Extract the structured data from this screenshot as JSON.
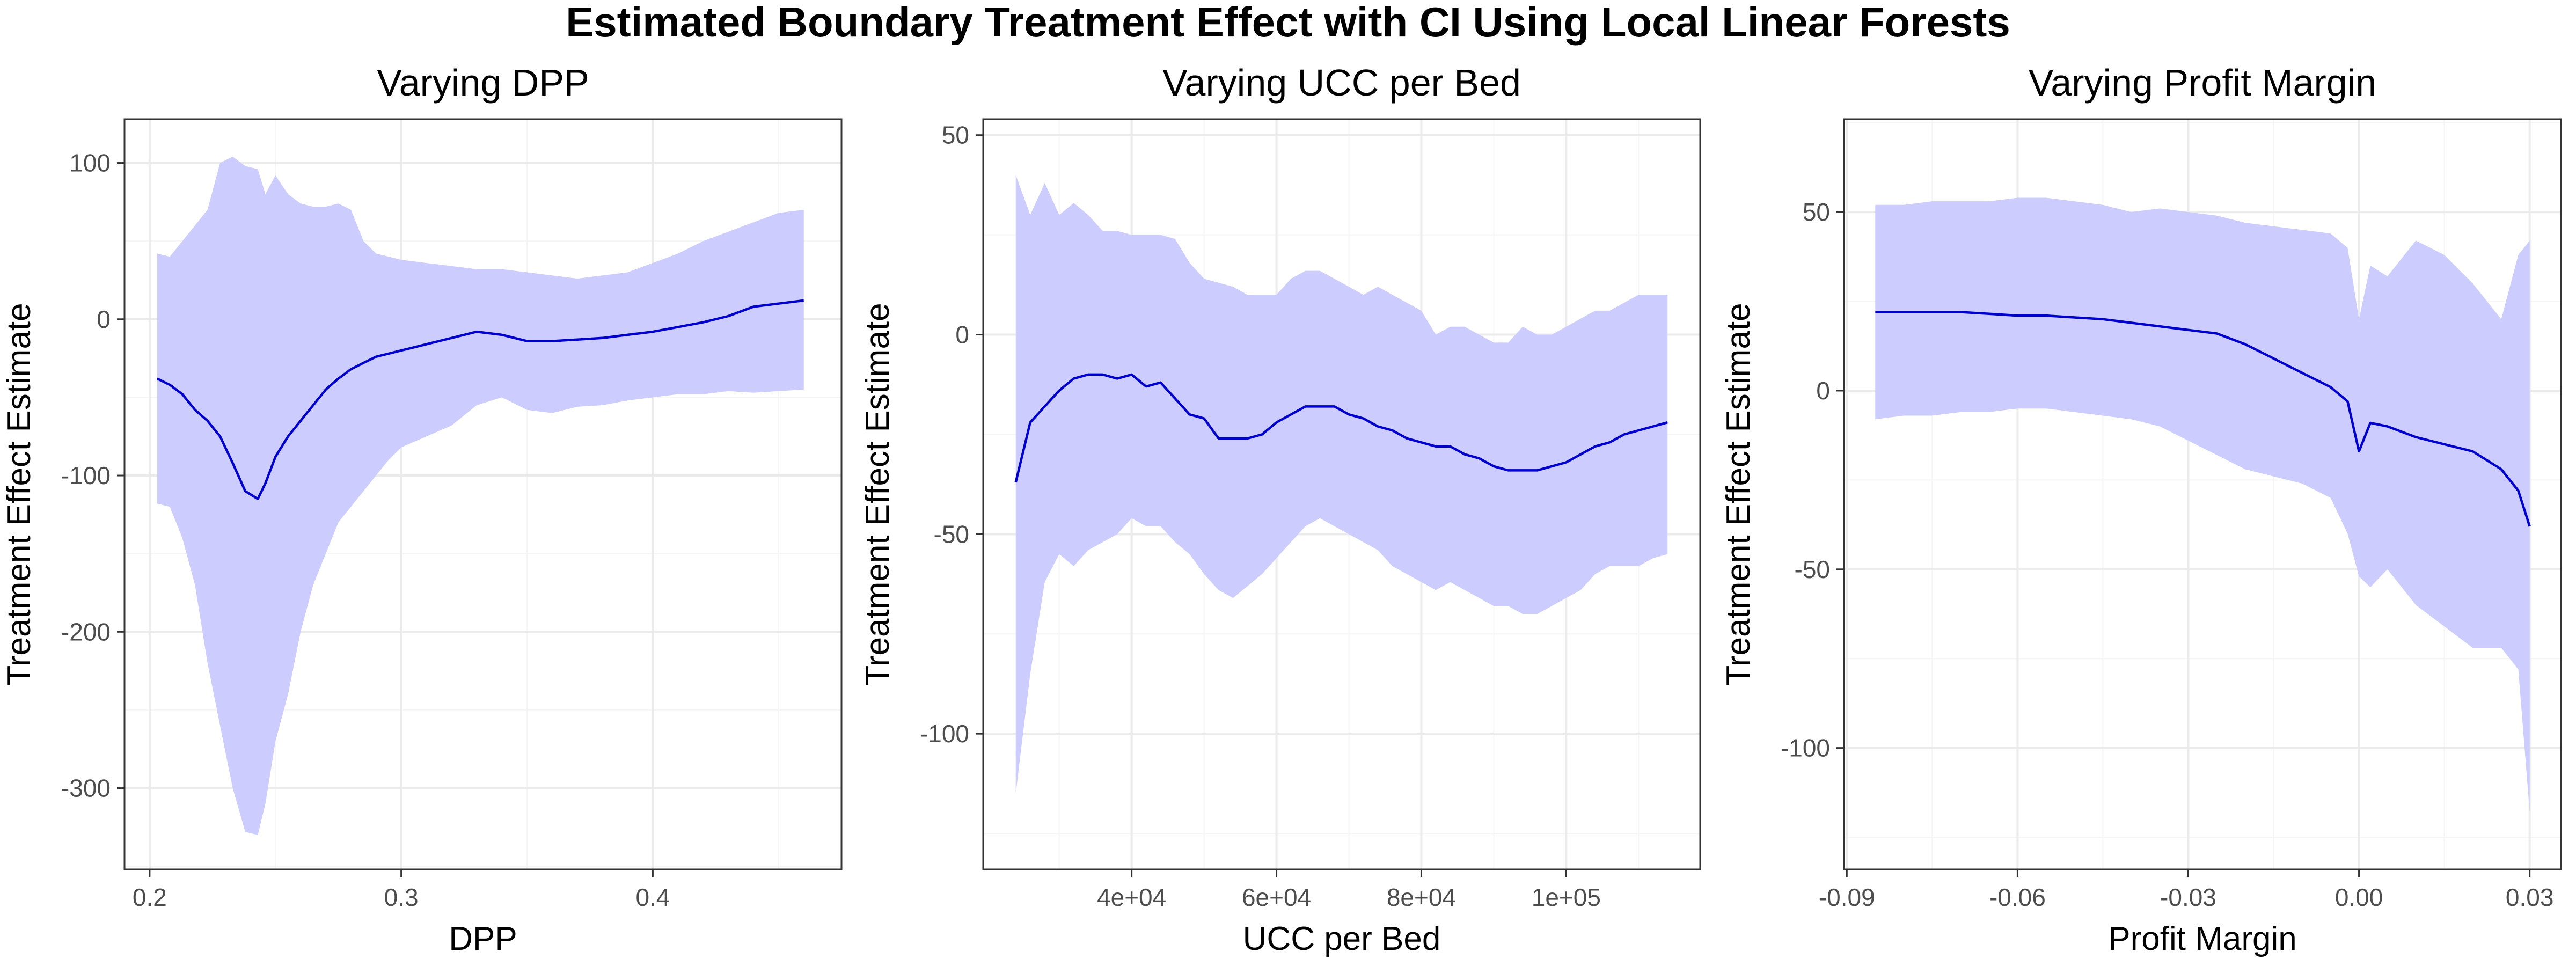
{
  "figure_title": "Estimated Boundary Treatment Effect with CI Using Local Linear Forests",
  "style": {
    "ribbon_color": "#ccccff",
    "line_color": "#0000cc"
  },
  "chart_data": [
    {
      "type": "area",
      "title": "Varying DPP",
      "xlabel": "DPP",
      "ylabel": "Treatment Effect Estimate",
      "xlim": [
        0.19,
        0.475
      ],
      "ylim": [
        -352,
        128
      ],
      "xticks": [
        0.2,
        0.3,
        0.4
      ],
      "xtick_labels": [
        "0.2",
        "0.3",
        "0.4"
      ],
      "yticks": [
        -300,
        -200,
        -100,
        0,
        100
      ],
      "ytick_labels": [
        "-300",
        "-200",
        "-100",
        "0",
        "100"
      ],
      "grid": true,
      "series": [
        {
          "x": [
            0.203,
            0.208,
            0.213,
            0.218,
            0.223,
            0.228,
            0.233,
            0.238,
            0.243,
            0.246,
            0.25,
            0.255,
            0.26,
            0.265,
            0.27,
            0.275,
            0.28,
            0.285,
            0.29,
            0.295,
            0.3,
            0.31,
            0.32,
            0.33,
            0.34,
            0.35,
            0.36,
            0.37,
            0.38,
            0.39,
            0.4,
            0.41,
            0.42,
            0.43,
            0.44,
            0.45,
            0.46
          ],
          "estimate": [
            -38,
            -42,
            -48,
            -58,
            -65,
            -75,
            -92,
            -110,
            -115,
            -105,
            -88,
            -75,
            -65,
            -55,
            -45,
            -38,
            -32,
            -28,
            -24,
            -22,
            -20,
            -16,
            -12,
            -8,
            -10,
            -14,
            -14,
            -13,
            -12,
            -10,
            -8,
            -5,
            -2,
            2,
            8,
            10,
            12
          ],
          "lower": [
            -118,
            -120,
            -140,
            -170,
            -220,
            -260,
            -300,
            -328,
            -330,
            -310,
            -270,
            -240,
            -200,
            -170,
            -150,
            -130,
            -120,
            -110,
            -100,
            -90,
            -82,
            -75,
            -68,
            -55,
            -50,
            -58,
            -60,
            -56,
            -55,
            -52,
            -50,
            -48,
            -48,
            -46,
            -47,
            -46,
            -45
          ],
          "upper": [
            42,
            40,
            50,
            60,
            70,
            100,
            104,
            98,
            96,
            80,
            92,
            80,
            74,
            72,
            72,
            74,
            70,
            50,
            42,
            40,
            38,
            36,
            34,
            32,
            32,
            30,
            28,
            26,
            28,
            30,
            36,
            42,
            50,
            56,
            62,
            68,
            70
          ]
        }
      ]
    },
    {
      "type": "area",
      "title": "Varying UCC per Bed",
      "xlabel": "UCC per Bed",
      "ylabel": "Treatment Effect Estimate",
      "xlim": [
        19500,
        118500
      ],
      "ylim": [
        -134,
        54
      ],
      "xticks": [
        40000,
        60000,
        80000,
        100000
      ],
      "xtick_labels": [
        "4e+04",
        "6e+04",
        "8e+04",
        "1e+05"
      ],
      "yticks": [
        -100,
        -50,
        0,
        50
      ],
      "ytick_labels": [
        "-100",
        "-50",
        "0",
        "50"
      ],
      "grid": true,
      "series": [
        {
          "x": [
            24000,
            26000,
            28000,
            30000,
            32000,
            34000,
            36000,
            38000,
            40000,
            42000,
            44000,
            46000,
            48000,
            50000,
            52000,
            54000,
            56000,
            58000,
            60000,
            62000,
            64000,
            66000,
            68000,
            70000,
            72000,
            74000,
            76000,
            78000,
            80000,
            82000,
            84000,
            86000,
            88000,
            90000,
            92000,
            94000,
            96000,
            98000,
            100000,
            102000,
            104000,
            106000,
            108000,
            110000,
            112000,
            114000
          ],
          "estimate": [
            -37,
            -22,
            -18,
            -14,
            -11,
            -10,
            -10,
            -11,
            -10,
            -13,
            -12,
            -16,
            -20,
            -21,
            -26,
            -26,
            -26,
            -25,
            -22,
            -20,
            -18,
            -18,
            -18,
            -20,
            -21,
            -23,
            -24,
            -26,
            -27,
            -28,
            -28,
            -30,
            -31,
            -33,
            -34,
            -34,
            -34,
            -33,
            -32,
            -30,
            -28,
            -27,
            -25,
            -24,
            -23,
            -22
          ],
          "lower": [
            -115,
            -85,
            -62,
            -55,
            -58,
            -54,
            -52,
            -50,
            -46,
            -48,
            -48,
            -52,
            -55,
            -60,
            -64,
            -66,
            -63,
            -60,
            -56,
            -52,
            -48,
            -46,
            -48,
            -50,
            -52,
            -54,
            -58,
            -60,
            -62,
            -64,
            -62,
            -64,
            -66,
            -68,
            -68,
            -70,
            -70,
            -68,
            -66,
            -64,
            -60,
            -58,
            -58,
            -58,
            -56,
            -55
          ],
          "upper": [
            40,
            30,
            38,
            30,
            33,
            30,
            26,
            26,
            25,
            25,
            25,
            24,
            18,
            14,
            13,
            12,
            10,
            10,
            10,
            14,
            16,
            16,
            14,
            12,
            10,
            12,
            10,
            8,
            6,
            0,
            2,
            2,
            0,
            -2,
            -2,
            2,
            0,
            0,
            2,
            4,
            6,
            6,
            8,
            10,
            10,
            10
          ]
        }
      ]
    },
    {
      "type": "area",
      "title": "Varying Profit Margin",
      "xlabel": "Profit Margin",
      "ylabel": "Treatment Effect Estimate",
      "xlim": [
        -0.0905,
        0.0355
      ],
      "ylim": [
        -134,
        76
      ],
      "xticks": [
        -0.09,
        -0.06,
        -0.03,
        0.0,
        0.03
      ],
      "xtick_labels": [
        "-0.09",
        "-0.06",
        "-0.03",
        "0.00",
        "0.03"
      ],
      "yticks": [
        -100,
        -50,
        0,
        50
      ],
      "ytick_labels": [
        "-100",
        "-50",
        "0",
        "50"
      ],
      "grid": true,
      "series": [
        {
          "x": [
            -0.085,
            -0.08,
            -0.075,
            -0.07,
            -0.065,
            -0.06,
            -0.055,
            -0.05,
            -0.045,
            -0.04,
            -0.035,
            -0.03,
            -0.025,
            -0.02,
            -0.015,
            -0.01,
            -0.005,
            -0.002,
            0.0,
            0.002,
            0.005,
            0.01,
            0.015,
            0.02,
            0.025,
            0.028,
            0.03
          ],
          "estimate": [
            22,
            22,
            22,
            22,
            21.5,
            21,
            21,
            20.5,
            20,
            19,
            18,
            17,
            16,
            13,
            9,
            5,
            1,
            -3,
            -17,
            -9,
            -10,
            -13,
            -15,
            -17,
            -22,
            -28,
            -38
          ],
          "lower": [
            -8,
            -7,
            -7,
            -6,
            -6,
            -5,
            -5,
            -6,
            -7,
            -8,
            -10,
            -14,
            -18,
            -22,
            -24,
            -26,
            -30,
            -40,
            -52,
            -55,
            -50,
            -60,
            -66,
            -72,
            -72,
            -78,
            -118
          ],
          "upper": [
            52,
            52,
            53,
            53,
            53,
            54,
            54,
            53,
            52,
            50,
            51,
            50,
            49,
            47,
            46,
            45,
            44,
            40,
            20,
            35,
            32,
            42,
            38,
            30,
            20,
            38,
            42
          ]
        }
      ]
    }
  ]
}
